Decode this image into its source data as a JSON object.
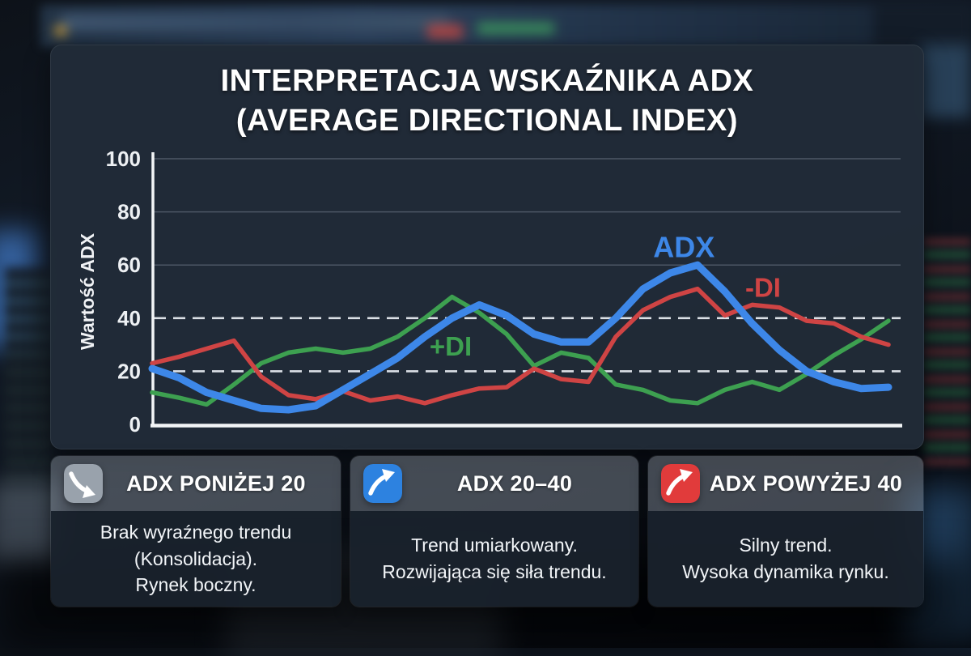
{
  "title": {
    "line1": "INTERPRETACJA WSKAŹNIKA ADX",
    "line2": "(AVERAGE DIRECTIONAL INDEX)"
  },
  "chart_data": {
    "type": "line",
    "ylabel": "Wartość ADX",
    "ylim": [
      0,
      100
    ],
    "yticks": [
      0,
      20,
      40,
      60,
      80,
      100
    ],
    "threshold_dashed_levels": [
      20,
      40
    ],
    "solid_gridlines": [
      60,
      80,
      100
    ],
    "grid": "horizontal-only",
    "legend_position": "inline-labels",
    "x_count": 28,
    "series": [
      {
        "name": "ADX",
        "color": "#3d87e8",
        "values": [
          21,
          17.5,
          12,
          9,
          6,
          5.5,
          7,
          13,
          19,
          25,
          33,
          40,
          45,
          41,
          34,
          31,
          31,
          40,
          51,
          57,
          60,
          50,
          38,
          28,
          20,
          16,
          13.5,
          14
        ]
      },
      {
        "name": "+DI",
        "color": "#3da050",
        "values": [
          12,
          10,
          7.5,
          15,
          23,
          27,
          28.5,
          27,
          28.5,
          33,
          40,
          48,
          42,
          34,
          22,
          27,
          25,
          15,
          13,
          9,
          8,
          13,
          16,
          13,
          19,
          26,
          32,
          39
        ]
      },
      {
        "name": "-DI",
        "color": "#cf4444",
        "values": [
          23,
          25.5,
          28.5,
          31.5,
          18,
          11,
          9.5,
          12.5,
          9,
          10.5,
          8,
          11,
          13.5,
          14,
          21,
          17,
          16,
          33,
          43,
          48,
          51,
          41,
          45,
          44,
          39,
          38,
          33,
          30
        ]
      }
    ],
    "annotations": [
      {
        "text": "ADX",
        "color": "#3d87e8",
        "x": 19.5,
        "y": 66
      },
      {
        "text": "-DI",
        "color": "#cf4444",
        "x": 22.4,
        "y": 51
      },
      {
        "text": "+DI",
        "color": "#3da050",
        "x": 10.95,
        "y": 29
      }
    ]
  },
  "cards": [
    {
      "title": "ADX PONIŻEJ 20",
      "icon": "trend-down-arrow",
      "icon_bg": "#99a2ac",
      "lines": [
        "Brak wyraźnego trendu",
        "(Konsolidacja).",
        "Rynek boczny."
      ]
    },
    {
      "title": "ADX 20–40",
      "icon": "trend-up-arrow",
      "icon_bg": "#2d82e0",
      "lines": [
        "Trend umiarkowany.",
        "Rozwijająca się siła trendu."
      ]
    },
    {
      "title": "ADX POWYŻEJ 40",
      "icon": "trend-up-arrow",
      "icon_bg": "#e13b3b",
      "lines": [
        "Silny trend.",
        "Wysoka dynamika rynku."
      ]
    }
  ]
}
